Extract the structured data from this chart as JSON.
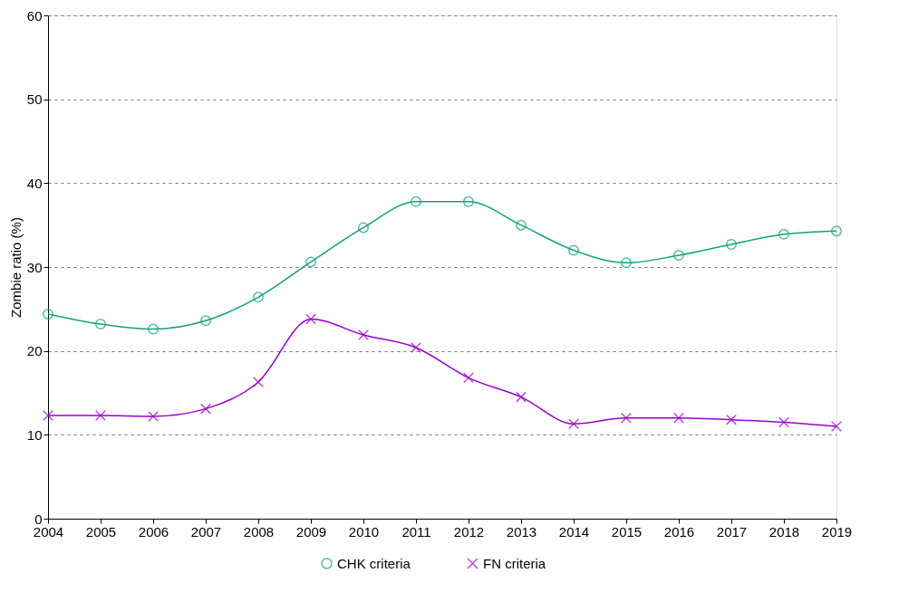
{
  "chart_data": {
    "type": "line",
    "ylabel": "Zombie ratio (%)",
    "x": [
      2004,
      2005,
      2006,
      2007,
      2008,
      2009,
      2010,
      2011,
      2012,
      2013,
      2014,
      2015,
      2016,
      2017,
      2018,
      2019
    ],
    "xlim": [
      2004,
      2019
    ],
    "xticks": [
      2004,
      2005,
      2006,
      2007,
      2008,
      2009,
      2010,
      2011,
      2012,
      2013,
      2014,
      2015,
      2016,
      2017,
      2018,
      2019
    ],
    "ylim": [
      0,
      60
    ],
    "yticks": [
      0,
      10,
      20,
      30,
      40,
      50,
      60
    ],
    "grid": "y",
    "legend": "bottom",
    "line_style": "solid",
    "series": [
      {
        "name": "CHK criteria",
        "color": "#13a07b",
        "marker": "circle",
        "values": [
          24.4,
          23.2,
          22.6,
          23.6,
          26.4,
          30.6,
          34.7,
          37.8,
          37.8,
          35.0,
          32.0,
          30.5,
          31.4,
          32.7,
          33.9,
          34.3
        ]
      },
      {
        "name": "FN criteria",
        "color": "#9900cc",
        "marker": "cross",
        "values": [
          12.3,
          12.3,
          12.2,
          13.1,
          16.3,
          23.8,
          21.9,
          20.4,
          16.8,
          14.5,
          11.3,
          12.0,
          12.0,
          11.8,
          11.5,
          11.0
        ]
      }
    ]
  }
}
